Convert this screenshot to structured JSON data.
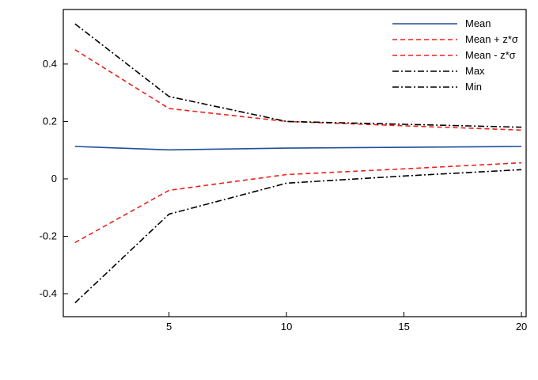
{
  "chart_data": {
    "type": "line",
    "title": "",
    "xlabel": "",
    "ylabel": "",
    "x": [
      1,
      5,
      10,
      15,
      20
    ],
    "xlim": [
      0.5,
      20.2
    ],
    "ylim": [
      -0.48,
      0.59
    ],
    "xticks": [
      5,
      10,
      15,
      20
    ],
    "xtick_labels": [
      "5",
      "10",
      "15",
      "20"
    ],
    "yticks": [
      -0.4,
      -0.2,
      0,
      0.2,
      0.4
    ],
    "ytick_labels": [
      "-0.4",
      "-0.2",
      "0",
      "0.2",
      "0.4"
    ],
    "grid": false,
    "legend": "top-right",
    "series": [
      {
        "name": "Mean",
        "values": [
          0.113,
          0.101,
          0.107,
          0.11,
          0.113
        ],
        "color": "#1f4e9a",
        "dash": "solid"
      },
      {
        "name": "Mean + z*σ",
        "values": [
          0.45,
          0.245,
          0.2,
          0.185,
          0.17
        ],
        "color": "#e8231e",
        "dash": "dashed"
      },
      {
        "name": "Mean - z*σ",
        "values": [
          -0.222,
          -0.04,
          0.015,
          0.035,
          0.056
        ],
        "color": "#e8231e",
        "dash": "dashed"
      },
      {
        "name": "Max",
        "values": [
          0.54,
          0.287,
          0.2,
          0.19,
          0.18
        ],
        "color": "#000000",
        "dash": "dashdot"
      },
      {
        "name": "Min",
        "values": [
          -0.432,
          -0.123,
          -0.015,
          0.01,
          0.032
        ],
        "color": "#000000",
        "dash": "dashdot"
      }
    ]
  }
}
